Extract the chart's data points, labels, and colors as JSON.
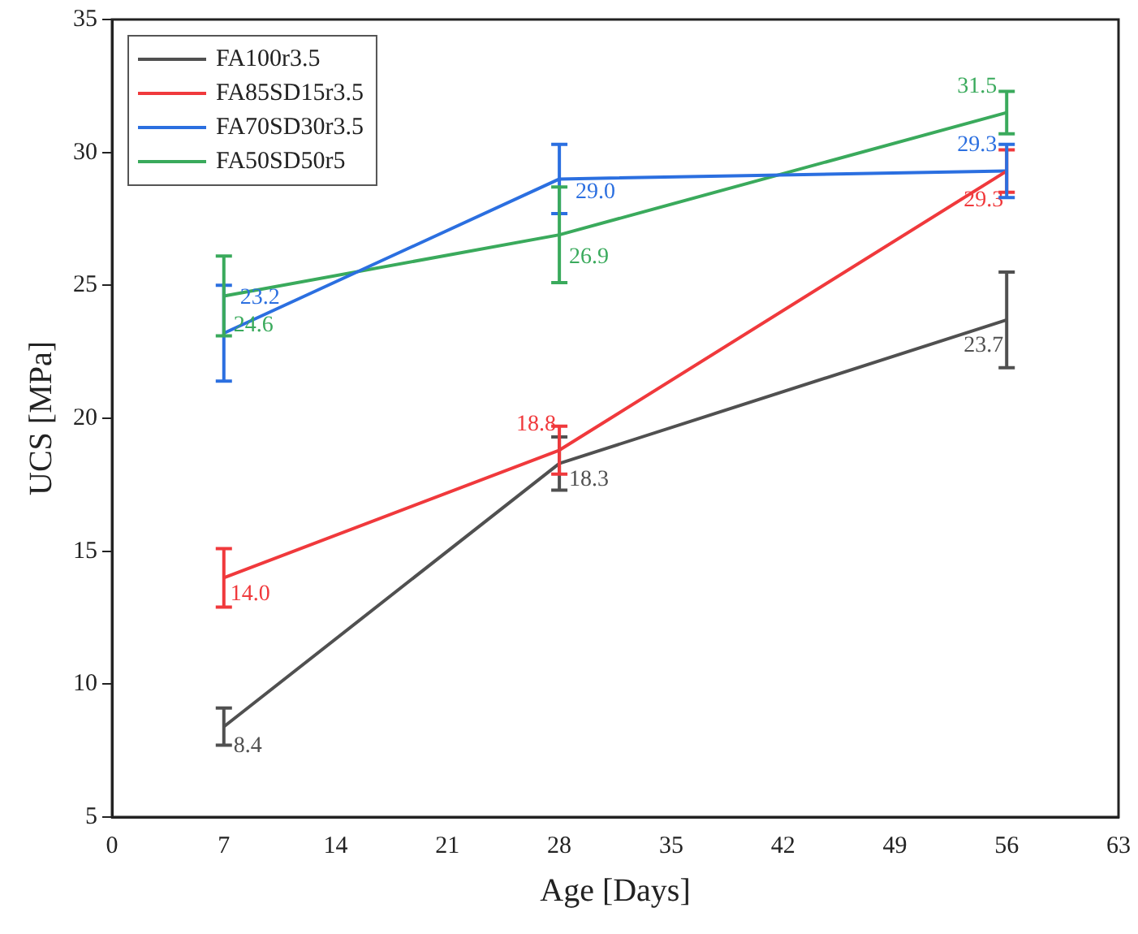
{
  "chart_data": {
    "type": "line",
    "xlabel": "Age [Days]",
    "ylabel": "UCS [MPa]",
    "x": [
      7,
      28,
      56
    ],
    "xlim": [
      0,
      63
    ],
    "xticks": [
      0,
      7,
      14,
      21,
      28,
      35,
      42,
      49,
      56,
      63
    ],
    "ylim": [
      5,
      35
    ],
    "yticks": [
      5,
      10,
      15,
      20,
      25,
      30,
      35
    ],
    "grid": false,
    "legend": "top left",
    "marker": "none",
    "line_style": "solid",
    "series": [
      {
        "name": "FA100r3.5",
        "color": "#505050",
        "values": [
          8.4,
          18.3,
          23.7
        ],
        "errors": [
          0.7,
          1.0,
          1.8
        ],
        "value_labels": [
          "8.4",
          "18.3",
          "23.7"
        ]
      },
      {
        "name": "FA85SD15r3.5",
        "color": "#f0393c",
        "values": [
          14.0,
          18.8,
          29.3
        ],
        "errors": [
          1.1,
          0.9,
          0.8
        ],
        "value_labels": [
          "14.0",
          "18.8",
          "29.3"
        ]
      },
      {
        "name": "FA70SD30r3.5",
        "color": "#2b6fe0",
        "values": [
          23.2,
          29.0,
          29.3
        ],
        "errors": [
          1.8,
          1.3,
          1.0
        ],
        "value_labels": [
          "23.2",
          "29.0",
          "29.3"
        ]
      },
      {
        "name": "FA50SD50r5",
        "color": "#3aaa5c",
        "values": [
          24.6,
          26.9,
          31.5
        ],
        "errors": [
          1.5,
          1.8,
          0.8
        ],
        "value_labels": [
          "24.6",
          "26.9",
          "31.5"
        ]
      }
    ]
  }
}
